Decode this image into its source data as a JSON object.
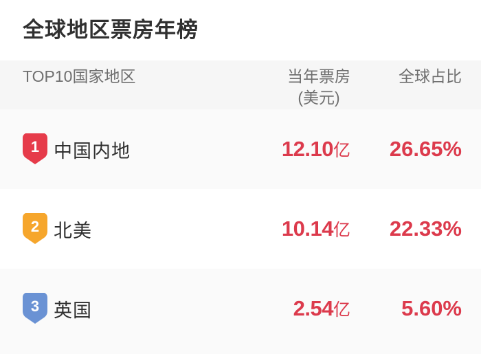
{
  "page": {
    "title": "全球地区票房年榜"
  },
  "table": {
    "header": {
      "region_col": "TOP10国家地区",
      "boxoffice_col_line1": "当年票房",
      "boxoffice_col_line2": "(美元)",
      "share_col": "全球占比"
    },
    "rows": [
      {
        "rank": "1",
        "region": "中国内地",
        "boxoffice_value": "12.10",
        "boxoffice_unit": "亿",
        "share": "26.65%",
        "badge_color": "#e63b4a"
      },
      {
        "rank": "2",
        "region": "北美",
        "boxoffice_value": "10.14",
        "boxoffice_unit": "亿",
        "share": "22.33%",
        "badge_color": "#f6a62c"
      },
      {
        "rank": "3",
        "region": "英国",
        "boxoffice_value": "2.54",
        "boxoffice_unit": "亿",
        "share": "5.60%",
        "badge_color": "#6a92d4"
      }
    ]
  },
  "colors": {
    "accent_red": "#dc3a4c",
    "header_bg": "#f6f6f6",
    "stripe_bg": "#fafafa",
    "text_dark": "#303030",
    "text_gray": "#6f6f6f",
    "badge_text": "#ffffff"
  }
}
